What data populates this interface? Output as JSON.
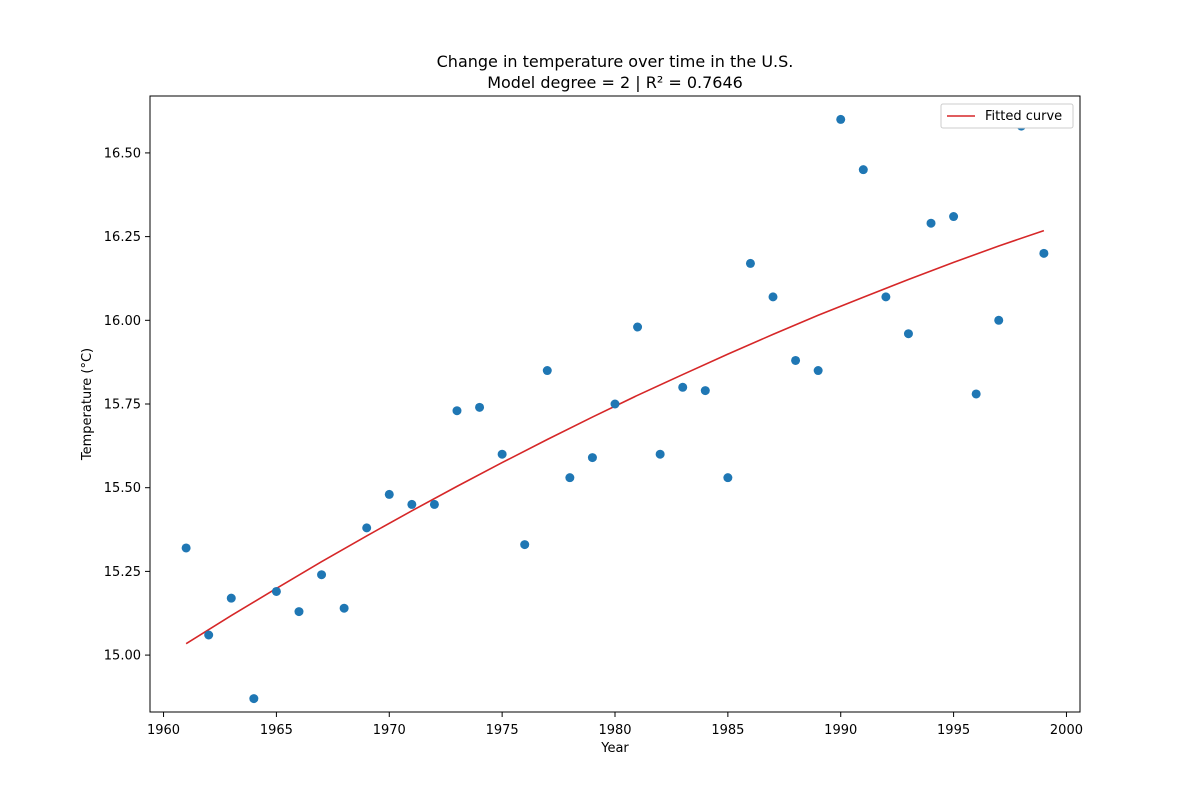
{
  "chart_data": {
    "type": "scatter",
    "title": "Change in temperature over time in the U.S.",
    "subtitle": "Model degree = 2 | R² = 0.7646",
    "xlabel": "Year",
    "ylabel": "Temperature (°C)",
    "xlim": [
      1959.4,
      2000.6
    ],
    "ylim": [
      14.83,
      16.67
    ],
    "xticks": [
      1960,
      1965,
      1970,
      1975,
      1980,
      1985,
      1990,
      1995,
      2000
    ],
    "xtick_labels": [
      "1960",
      "1965",
      "1970",
      "1975",
      "1980",
      "1985",
      "1990",
      "1995",
      "2000"
    ],
    "yticks": [
      15.0,
      15.25,
      15.5,
      15.75,
      16.0,
      16.25,
      16.5
    ],
    "ytick_labels": [
      "15.00",
      "15.25",
      "15.50",
      "15.75",
      "16.00",
      "16.25",
      "16.50"
    ],
    "grid": false,
    "legend_position": "top-right",
    "series": [
      {
        "kind": "scatter",
        "color": "#1f77b4",
        "x": [
          1961,
          1962,
          1963,
          1964,
          1965,
          1966,
          1967,
          1968,
          1969,
          1970,
          1971,
          1972,
          1973,
          1974,
          1975,
          1976,
          1977,
          1978,
          1979,
          1980,
          1981,
          1982,
          1983,
          1984,
          1985,
          1986,
          1987,
          1988,
          1989,
          1990,
          1991,
          1992,
          1993,
          1994,
          1995,
          1996,
          1997,
          1998,
          1999
        ],
        "y": [
          15.32,
          15.06,
          15.17,
          14.87,
          15.19,
          15.13,
          15.24,
          15.14,
          15.38,
          15.48,
          15.45,
          15.45,
          15.73,
          15.74,
          15.6,
          15.33,
          15.85,
          15.53,
          15.59,
          15.75,
          15.98,
          15.6,
          15.8,
          15.79,
          15.53,
          16.17,
          16.07,
          15.88,
          15.85,
          16.6,
          16.45,
          16.07,
          15.96,
          16.29,
          16.31,
          15.78,
          16.0,
          16.58,
          16.2
        ]
      },
      {
        "kind": "line",
        "name": "Fitted curve",
        "color": "#d62728",
        "x": [
          1961,
          1963,
          1965,
          1967,
          1969,
          1971,
          1973,
          1975,
          1977,
          1979,
          1981,
          1983,
          1985,
          1987,
          1989,
          1991,
          1993,
          1995,
          1997,
          1999
        ],
        "y": [
          15.034,
          15.118,
          15.199,
          15.279,
          15.356,
          15.431,
          15.504,
          15.575,
          15.644,
          15.711,
          15.776,
          15.838,
          15.899,
          15.958,
          16.015,
          16.069,
          16.122,
          16.173,
          16.222,
          16.268
        ]
      }
    ]
  }
}
